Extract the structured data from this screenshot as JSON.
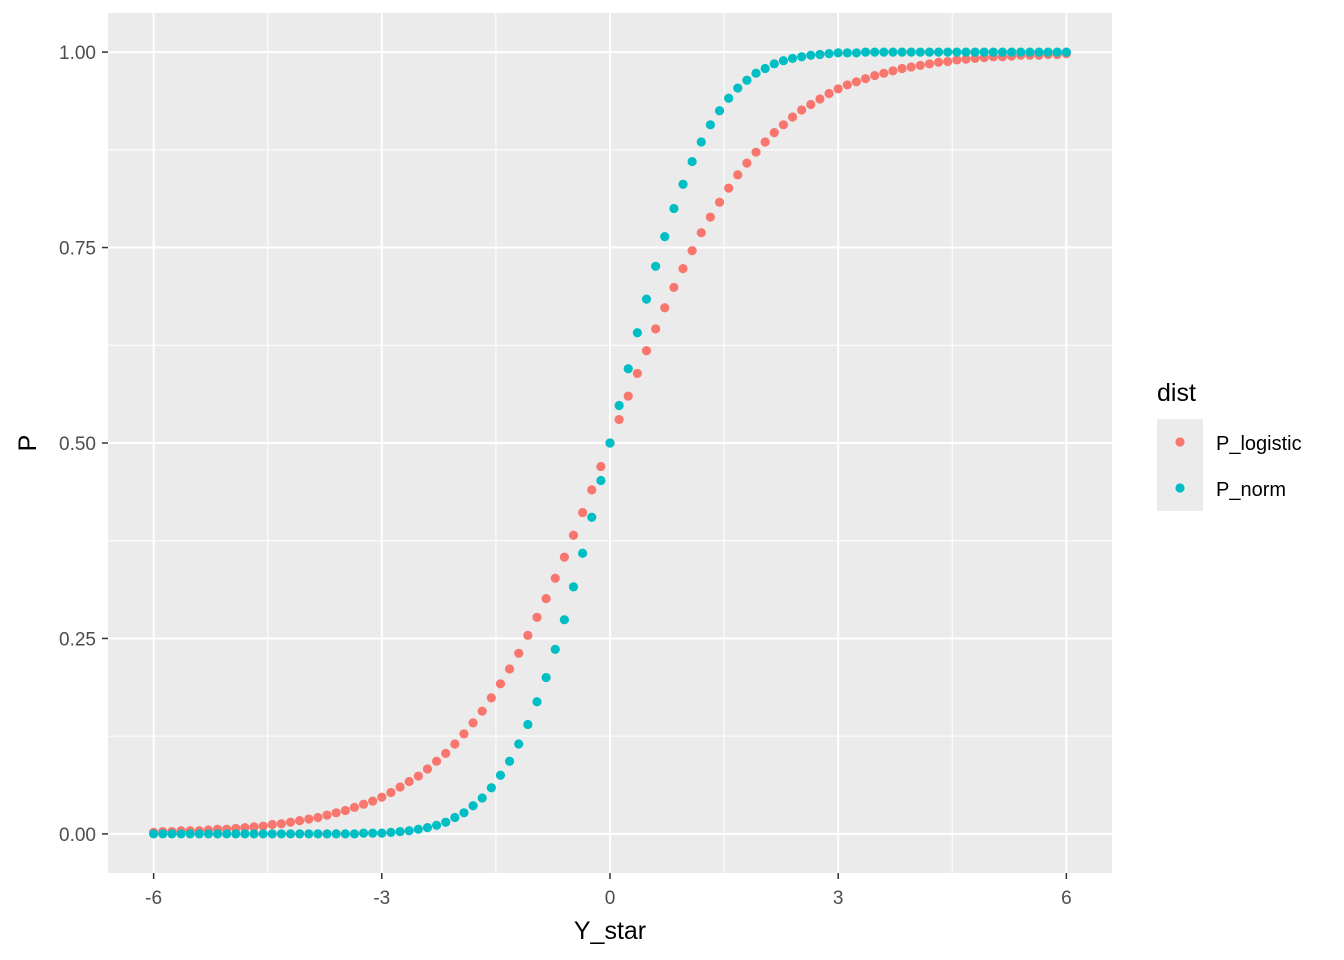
{
  "chart_data": {
    "type": "scatter",
    "title": "",
    "xlabel": "Y_star",
    "ylabel": "P",
    "xlim": [
      -6.6,
      6.6
    ],
    "ylim": [
      -0.05,
      1.05
    ],
    "x_ticks": [
      -6,
      -3,
      0,
      3,
      6
    ],
    "x_tick_labels": [
      "-6",
      "-3",
      "0",
      "3",
      "6"
    ],
    "y_ticks": [
      0,
      0.25,
      0.5,
      0.75,
      1
    ],
    "y_tick_labels": [
      "0.00",
      "0.25",
      "0.50",
      "0.75",
      "1.00"
    ],
    "grid": true,
    "x": [
      -6.0,
      -5.88,
      -5.76,
      -5.64,
      -5.52,
      -5.4,
      -5.28,
      -5.16,
      -5.04,
      -4.92,
      -4.8,
      -4.68,
      -4.56,
      -4.44,
      -4.32,
      -4.2,
      -4.08,
      -3.96,
      -3.84,
      -3.72,
      -3.6,
      -3.48,
      -3.36,
      -3.24,
      -3.12,
      -3.0,
      -2.88,
      -2.76,
      -2.64,
      -2.52,
      -2.4,
      -2.28,
      -2.16,
      -2.04,
      -1.92,
      -1.8,
      -1.68,
      -1.56,
      -1.44,
      -1.32,
      -1.2,
      -1.08,
      -0.96,
      -0.84,
      -0.72,
      -0.6,
      -0.48,
      -0.36,
      -0.24,
      -0.12,
      0.0,
      0.12,
      0.24,
      0.36,
      0.48,
      0.6,
      0.72,
      0.84,
      0.96,
      1.08,
      1.2,
      1.32,
      1.44,
      1.56,
      1.68,
      1.8,
      1.92,
      2.04,
      2.16,
      2.28,
      2.4,
      2.52,
      2.64,
      2.76,
      2.88,
      3.0,
      3.12,
      3.24,
      3.36,
      3.48,
      3.6,
      3.72,
      3.84,
      3.96,
      4.08,
      4.2,
      4.32,
      4.44,
      4.56,
      4.68,
      4.8,
      4.92,
      5.04,
      5.16,
      5.28,
      5.4,
      5.52,
      5.64,
      5.76,
      5.88,
      6.0
    ],
    "series": [
      {
        "name": "P_logistic",
        "color": "#F8766D",
        "values": [
          0.002,
          0.003,
          0.003,
          0.004,
          0.004,
          0.004,
          0.005,
          0.006,
          0.006,
          0.007,
          0.008,
          0.009,
          0.01,
          0.012,
          0.013,
          0.015,
          0.017,
          0.019,
          0.021,
          0.024,
          0.027,
          0.03,
          0.034,
          0.038,
          0.042,
          0.047,
          0.053,
          0.06,
          0.067,
          0.074,
          0.083,
          0.093,
          0.103,
          0.115,
          0.128,
          0.142,
          0.157,
          0.174,
          0.192,
          0.211,
          0.231,
          0.254,
          0.277,
          0.301,
          0.327,
          0.354,
          0.382,
          0.411,
          0.44,
          0.47,
          0.5,
          0.53,
          0.56,
          0.589,
          0.618,
          0.646,
          0.673,
          0.699,
          0.723,
          0.746,
          0.769,
          0.789,
          0.808,
          0.826,
          0.843,
          0.858,
          0.872,
          0.885,
          0.897,
          0.907,
          0.917,
          0.926,
          0.933,
          0.94,
          0.947,
          0.953,
          0.958,
          0.962,
          0.966,
          0.97,
          0.973,
          0.976,
          0.979,
          0.981,
          0.983,
          0.985,
          0.987,
          0.988,
          0.99,
          0.991,
          0.992,
          0.993,
          0.994,
          0.994,
          0.995,
          0.996,
          0.996,
          0.996,
          0.997,
          0.997,
          0.998
        ]
      },
      {
        "name": "P_norm",
        "color": "#00BFC4",
        "values": [
          0.0,
          0.0,
          0.0,
          0.0,
          0.0,
          0.0,
          0.0,
          0.0,
          0.0,
          0.0,
          0.0,
          0.0,
          0.0,
          0.0,
          0.0,
          0.0,
          0.0,
          0.0,
          0.0,
          0.0,
          0.0,
          0.0,
          0.0,
          0.001,
          0.001,
          0.001,
          0.002,
          0.003,
          0.004,
          0.006,
          0.008,
          0.011,
          0.015,
          0.021,
          0.027,
          0.036,
          0.046,
          0.059,
          0.075,
          0.093,
          0.115,
          0.14,
          0.169,
          0.2,
          0.236,
          0.274,
          0.316,
          0.359,
          0.405,
          0.452,
          0.5,
          0.548,
          0.595,
          0.641,
          0.684,
          0.726,
          0.764,
          0.8,
          0.831,
          0.86,
          0.885,
          0.907,
          0.925,
          0.941,
          0.954,
          0.964,
          0.973,
          0.979,
          0.985,
          0.989,
          0.992,
          0.994,
          0.996,
          0.997,
          0.998,
          0.999,
          0.999,
          0.999,
          1.0,
          1.0,
          1.0,
          1.0,
          1.0,
          1.0,
          1.0,
          1.0,
          1.0,
          1.0,
          1.0,
          1.0,
          1.0,
          1.0,
          1.0,
          1.0,
          1.0,
          1.0,
          1.0,
          1.0,
          1.0,
          1.0,
          1.0
        ]
      }
    ],
    "legend": {
      "title": "dist",
      "placement": "right",
      "items": [
        "P_logistic",
        "P_norm"
      ]
    }
  },
  "colors": {
    "panel_background": "#EBEBEB",
    "grid_major": "#FFFFFF",
    "page_background": "#FFFFFF"
  }
}
